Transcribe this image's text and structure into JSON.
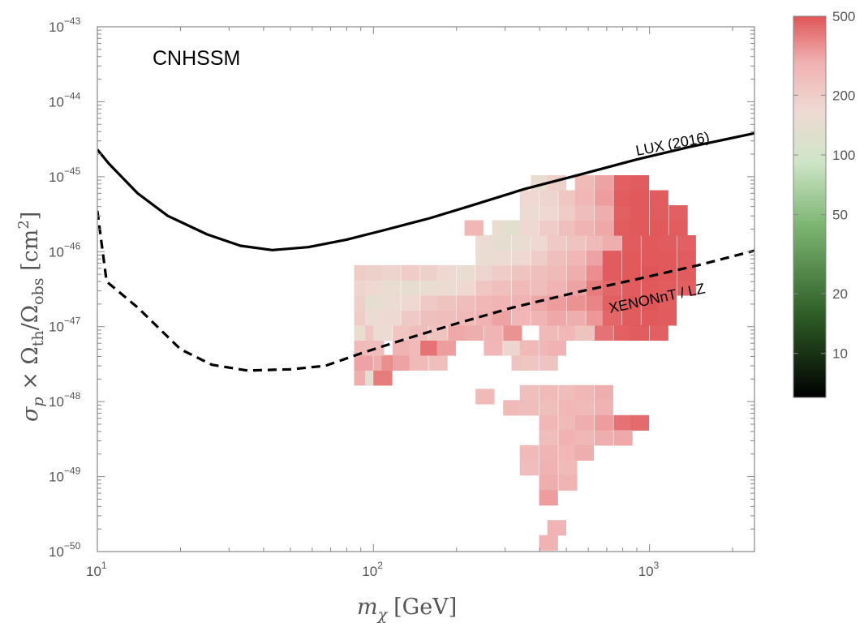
{
  "chart_data": {
    "type": "heatmap",
    "title": "CNHSSM",
    "xlabel": {
      "base": "m",
      "sub": "χ",
      "unit": "[GeV]"
    },
    "ylabel": {
      "sigma": "σ",
      "p": "p",
      "times": " × Ω",
      "th": "th",
      "slash": "/Ω",
      "obs": "obs",
      "unit": " [cm",
      "sup": "2",
      "close": "]"
    },
    "x_scale": "log",
    "y_scale": "log",
    "xlim": [
      10,
      2400
    ],
    "ylim": [
      1e-50,
      1e-43
    ],
    "x_ticks": [
      {
        "value": 10,
        "base": "10",
        "exp": "1"
      },
      {
        "value": 100,
        "base": "10",
        "exp": "2"
      },
      {
        "value": 1000,
        "base": "10",
        "exp": "3"
      }
    ],
    "y_ticks": [
      {
        "value": -50,
        "base": "10",
        "exp": "−50"
      },
      {
        "value": -49,
        "base": "10",
        "exp": "−49"
      },
      {
        "value": -48,
        "base": "10",
        "exp": "−48"
      },
      {
        "value": -47,
        "base": "10",
        "exp": "−47"
      },
      {
        "value": -46,
        "base": "10",
        "exp": "−46"
      },
      {
        "value": -45,
        "base": "10",
        "exp": "−45"
      },
      {
        "value": -44,
        "base": "10",
        "exp": "−44"
      },
      {
        "value": -43,
        "base": "10",
        "exp": "−43"
      }
    ],
    "grid": false,
    "colorbar": {
      "scale": "log",
      "range": [
        6,
        500
      ],
      "ticks": [
        "500",
        "200",
        "100",
        "50",
        "20",
        "10"
      ],
      "colors": {
        "low": "#000000",
        "mid_low": "#3e7a33",
        "mid": "#cfe5c8",
        "mid_high": "#f0c9c8",
        "high": "#e05557"
      }
    },
    "curves": [
      {
        "name": "LUX (2016)",
        "style": "solid",
        "points": [
          [
            10,
            2.3e-45
          ],
          [
            11,
            1.5e-45
          ],
          [
            14,
            6e-46
          ],
          [
            18,
            3e-46
          ],
          [
            25,
            1.7e-46
          ],
          [
            33,
            1.2e-46
          ],
          [
            43,
            1.05e-46
          ],
          [
            58,
            1.15e-46
          ],
          [
            80,
            1.45e-46
          ],
          [
            110,
            1.95e-46
          ],
          [
            160,
            2.8e-46
          ],
          [
            230,
            4.2e-46
          ],
          [
            350,
            6.8e-46
          ],
          [
            550,
            1.05e-45
          ],
          [
            900,
            1.7e-45
          ],
          [
            1400,
            2.5e-45
          ],
          [
            2400,
            3.8e-45
          ]
        ]
      },
      {
        "name": "XENONnT / LZ",
        "style": "dashed",
        "points": [
          [
            10,
            3.5e-46
          ],
          [
            10.8,
            4e-47
          ],
          [
            14,
            1.8e-47
          ],
          [
            20,
            5e-48
          ],
          [
            26,
            3.1e-48
          ],
          [
            35,
            2.6e-48
          ],
          [
            50,
            2.7e-48
          ],
          [
            67,
            3e-48
          ],
          [
            90,
            4.4e-48
          ],
          [
            130,
            6.8e-48
          ],
          [
            200,
            1.1e-47
          ],
          [
            320,
            1.8e-47
          ],
          [
            550,
            2.9e-47
          ],
          [
            900,
            4.3e-47
          ],
          [
            1500,
            6.6e-47
          ],
          [
            2400,
            1.03e-46
          ]
        ]
      }
    ],
    "heatmap": {
      "x_bins_log10": [
        1.9,
        3.1,
        0.0667
      ],
      "y_bins_log10": [
        -50,
        -45.1,
        0.2
      ],
      "cells": [
        [
          1.93,
          -47.68,
          300
        ],
        [
          1.97,
          -47.68,
          140
        ],
        [
          2.0,
          -47.68,
          400
        ],
        [
          2.37,
          -47.93,
          260
        ],
        [
          1.93,
          -47.48,
          320
        ],
        [
          2.0,
          -47.48,
          300
        ],
        [
          2.03,
          -47.48,
          360
        ],
        [
          2.07,
          -47.48,
          320
        ],
        [
          2.13,
          -47.48,
          260
        ],
        [
          2.2,
          -47.48,
          240
        ],
        [
          2.5,
          -47.48,
          230
        ],
        [
          2.53,
          -47.48,
          220
        ],
        [
          2.6,
          -47.48,
          230
        ],
        [
          1.93,
          -47.28,
          260
        ],
        [
          1.97,
          -47.28,
          250
        ],
        [
          2.07,
          -47.28,
          290
        ],
        [
          2.13,
          -47.28,
          260
        ],
        [
          2.17,
          -47.28,
          420
        ],
        [
          2.23,
          -47.28,
          330
        ],
        [
          2.4,
          -47.28,
          270
        ],
        [
          2.47,
          -47.28,
          180
        ],
        [
          2.53,
          -47.28,
          260
        ],
        [
          2.6,
          -47.28,
          270
        ],
        [
          2.63,
          -47.28,
          290
        ],
        [
          1.93,
          -47.08,
          150
        ],
        [
          1.97,
          -47.08,
          220
        ],
        [
          2.0,
          -47.08,
          160
        ],
        [
          2.07,
          -47.08,
          220
        ],
        [
          2.13,
          -47.08,
          250
        ],
        [
          2.2,
          -47.08,
          230
        ],
        [
          2.27,
          -47.08,
          310
        ],
        [
          2.33,
          -47.08,
          300
        ],
        [
          2.4,
          -47.08,
          280
        ],
        [
          2.47,
          -47.08,
          350
        ],
        [
          2.6,
          -47.08,
          260
        ],
        [
          2.67,
          -47.08,
          270
        ],
        [
          2.73,
          -47.08,
          230
        ],
        [
          2.8,
          -47.08,
          420
        ],
        [
          2.87,
          -47.08,
          470
        ],
        [
          2.93,
          -47.08,
          480
        ],
        [
          3.0,
          -47.08,
          470
        ],
        [
          1.93,
          -46.88,
          200
        ],
        [
          1.97,
          -46.88,
          160
        ],
        [
          2.03,
          -46.88,
          170
        ],
        [
          2.1,
          -46.88,
          210
        ],
        [
          2.17,
          -46.88,
          240
        ],
        [
          2.23,
          -46.88,
          250
        ],
        [
          2.3,
          -46.88,
          260
        ],
        [
          2.37,
          -46.88,
          290
        ],
        [
          2.43,
          -46.88,
          320
        ],
        [
          2.5,
          -46.88,
          270
        ],
        [
          2.57,
          -46.88,
          280
        ],
        [
          2.63,
          -46.88,
          310
        ],
        [
          2.7,
          -46.88,
          300
        ],
        [
          2.77,
          -46.88,
          340
        ],
        [
          2.83,
          -46.88,
          450
        ],
        [
          2.9,
          -46.88,
          480
        ],
        [
          2.97,
          -46.88,
          490
        ],
        [
          3.03,
          -46.88,
          480
        ],
        [
          1.93,
          -46.68,
          190
        ],
        [
          1.97,
          -46.68,
          140
        ],
        [
          2.03,
          -46.68,
          160
        ],
        [
          2.1,
          -46.68,
          170
        ],
        [
          2.17,
          -46.68,
          210
        ],
        [
          2.23,
          -46.68,
          230
        ],
        [
          2.3,
          -46.68,
          250
        ],
        [
          2.37,
          -46.68,
          270
        ],
        [
          2.43,
          -46.68,
          280
        ],
        [
          2.5,
          -46.68,
          290
        ],
        [
          2.57,
          -46.68,
          310
        ],
        [
          2.63,
          -46.68,
          330
        ],
        [
          2.7,
          -46.68,
          350
        ],
        [
          2.77,
          -46.68,
          380
        ],
        [
          2.83,
          -46.68,
          470
        ],
        [
          2.9,
          -46.68,
          490
        ],
        [
          2.97,
          -46.68,
          500
        ],
        [
          3.03,
          -46.68,
          480
        ],
        [
          1.93,
          -46.48,
          180
        ],
        [
          1.97,
          -46.48,
          170
        ],
        [
          2.03,
          -46.48,
          150
        ],
        [
          2.1,
          -46.48,
          140
        ],
        [
          2.17,
          -46.48,
          150
        ],
        [
          2.23,
          -46.48,
          160
        ],
        [
          2.3,
          -46.48,
          170
        ],
        [
          2.37,
          -46.48,
          220
        ],
        [
          2.43,
          -46.48,
          240
        ],
        [
          2.5,
          -46.48,
          260
        ],
        [
          2.57,
          -46.48,
          250
        ],
        [
          2.63,
          -46.48,
          280
        ],
        [
          2.7,
          -46.48,
          320
        ],
        [
          2.77,
          -46.48,
          400
        ],
        [
          2.83,
          -46.48,
          450
        ],
        [
          2.9,
          -46.48,
          480
        ],
        [
          2.97,
          -46.48,
          490
        ],
        [
          3.03,
          -46.48,
          480
        ],
        [
          3.1,
          -46.48,
          470
        ],
        [
          1.93,
          -46.28,
          200
        ],
        [
          1.97,
          -46.28,
          190
        ],
        [
          2.03,
          -46.28,
          180
        ],
        [
          2.1,
          -46.28,
          200
        ],
        [
          2.17,
          -46.28,
          190
        ],
        [
          2.23,
          -46.28,
          170
        ],
        [
          2.3,
          -46.28,
          150
        ],
        [
          2.37,
          -46.28,
          180
        ],
        [
          2.43,
          -46.28,
          200
        ],
        [
          2.5,
          -46.28,
          230
        ],
        [
          2.57,
          -46.28,
          240
        ],
        [
          2.63,
          -46.28,
          260
        ],
        [
          2.7,
          -46.28,
          300
        ],
        [
          2.77,
          -46.28,
          360
        ],
        [
          2.83,
          -46.28,
          480
        ],
        [
          2.9,
          -46.28,
          490
        ],
        [
          2.97,
          -46.28,
          500
        ],
        [
          3.03,
          -46.28,
          490
        ],
        [
          3.1,
          -46.28,
          480
        ],
        [
          2.37,
          -46.08,
          150
        ],
        [
          2.43,
          -46.08,
          160
        ],
        [
          2.5,
          -46.08,
          170
        ],
        [
          2.57,
          -46.08,
          200
        ],
        [
          2.63,
          -46.08,
          240
        ],
        [
          2.7,
          -46.08,
          270
        ],
        [
          2.77,
          -46.08,
          320
        ],
        [
          2.83,
          -46.08,
          480
        ],
        [
          2.9,
          -46.08,
          490
        ],
        [
          2.97,
          -46.08,
          490
        ],
        [
          3.03,
          -46.08,
          490
        ],
        [
          3.1,
          -46.08,
          480
        ],
        [
          2.37,
          -45.88,
          160
        ],
        [
          2.43,
          -45.88,
          140
        ],
        [
          2.5,
          -45.88,
          150
        ],
        [
          2.57,
          -45.88,
          170
        ],
        [
          2.63,
          -45.88,
          210
        ],
        [
          2.7,
          -45.88,
          230
        ],
        [
          2.77,
          -45.88,
          260
        ],
        [
          2.83,
          -45.88,
          300
        ],
        [
          2.9,
          -45.88,
          480
        ],
        [
          2.97,
          -45.88,
          490
        ],
        [
          3.03,
          -45.88,
          480
        ],
        [
          3.1,
          -45.88,
          470
        ],
        [
          2.33,
          -45.68,
          270
        ],
        [
          2.43,
          -45.68,
          150
        ],
        [
          2.47,
          -45.68,
          130
        ],
        [
          2.53,
          -45.68,
          170
        ],
        [
          2.6,
          -45.68,
          200
        ],
        [
          2.67,
          -45.68,
          240
        ],
        [
          2.73,
          -45.68,
          280
        ],
        [
          2.8,
          -45.68,
          310
        ],
        [
          2.87,
          -45.68,
          480
        ],
        [
          2.93,
          -45.68,
          490
        ],
        [
          3.0,
          -45.68,
          490
        ],
        [
          3.07,
          -45.68,
          480
        ],
        [
          2.53,
          -45.48,
          160
        ],
        [
          2.6,
          -45.48,
          170
        ],
        [
          2.67,
          -45.48,
          200
        ],
        [
          2.73,
          -45.48,
          250
        ],
        [
          2.8,
          -45.48,
          300
        ],
        [
          2.87,
          -45.48,
          470
        ],
        [
          2.93,
          -45.48,
          490
        ],
        [
          3.0,
          -45.48,
          480
        ],
        [
          3.07,
          -45.48,
          470
        ],
        [
          2.53,
          -45.28,
          170
        ],
        [
          2.6,
          -45.28,
          180
        ],
        [
          2.67,
          -45.28,
          220
        ],
        [
          2.73,
          -45.28,
          270
        ],
        [
          2.8,
          -45.28,
          330
        ],
        [
          2.87,
          -45.28,
          480
        ],
        [
          2.93,
          -45.28,
          490
        ],
        [
          3.0,
          -45.28,
          480
        ],
        [
          2.57,
          -45.08,
          150
        ],
        [
          2.63,
          -45.08,
          190
        ],
        [
          2.73,
          -45.08,
          260
        ],
        [
          2.8,
          -45.08,
          320
        ],
        [
          2.87,
          -45.08,
          470
        ],
        [
          2.93,
          -45.08,
          480
        ],
        [
          2.53,
          -47.88,
          240
        ],
        [
          2.6,
          -47.88,
          260
        ],
        [
          2.67,
          -47.88,
          250
        ],
        [
          2.73,
          -47.88,
          270
        ],
        [
          2.8,
          -47.88,
          300
        ],
        [
          2.47,
          -48.08,
          260
        ],
        [
          2.53,
          -48.08,
          250
        ],
        [
          2.6,
          -48.08,
          240
        ],
        [
          2.67,
          -48.08,
          270
        ],
        [
          2.73,
          -48.08,
          260
        ],
        [
          2.8,
          -48.08,
          290
        ],
        [
          2.6,
          -48.28,
          270
        ],
        [
          2.67,
          -48.28,
          260
        ],
        [
          2.73,
          -48.28,
          300
        ],
        [
          2.8,
          -48.28,
          330
        ],
        [
          2.87,
          -48.28,
          420
        ],
        [
          2.93,
          -48.28,
          440
        ],
        [
          2.6,
          -48.48,
          250
        ],
        [
          2.67,
          -48.48,
          290
        ],
        [
          2.73,
          -48.48,
          270
        ],
        [
          2.8,
          -48.48,
          300
        ],
        [
          2.87,
          -48.48,
          310
        ],
        [
          2.53,
          -48.68,
          260
        ],
        [
          2.6,
          -48.68,
          280
        ],
        [
          2.67,
          -48.68,
          270
        ],
        [
          2.73,
          -48.68,
          300
        ],
        [
          2.53,
          -48.88,
          250
        ],
        [
          2.6,
          -48.88,
          290
        ],
        [
          2.67,
          -48.88,
          260
        ],
        [
          2.6,
          -49.08,
          300
        ],
        [
          2.67,
          -49.08,
          280
        ],
        [
          2.6,
          -49.28,
          330
        ],
        [
          2.63,
          -49.68,
          280
        ],
        [
          2.6,
          -49.88,
          290
        ]
      ]
    },
    "label_positions_note": "",
    "legend": "curve labels placed along curves"
  }
}
